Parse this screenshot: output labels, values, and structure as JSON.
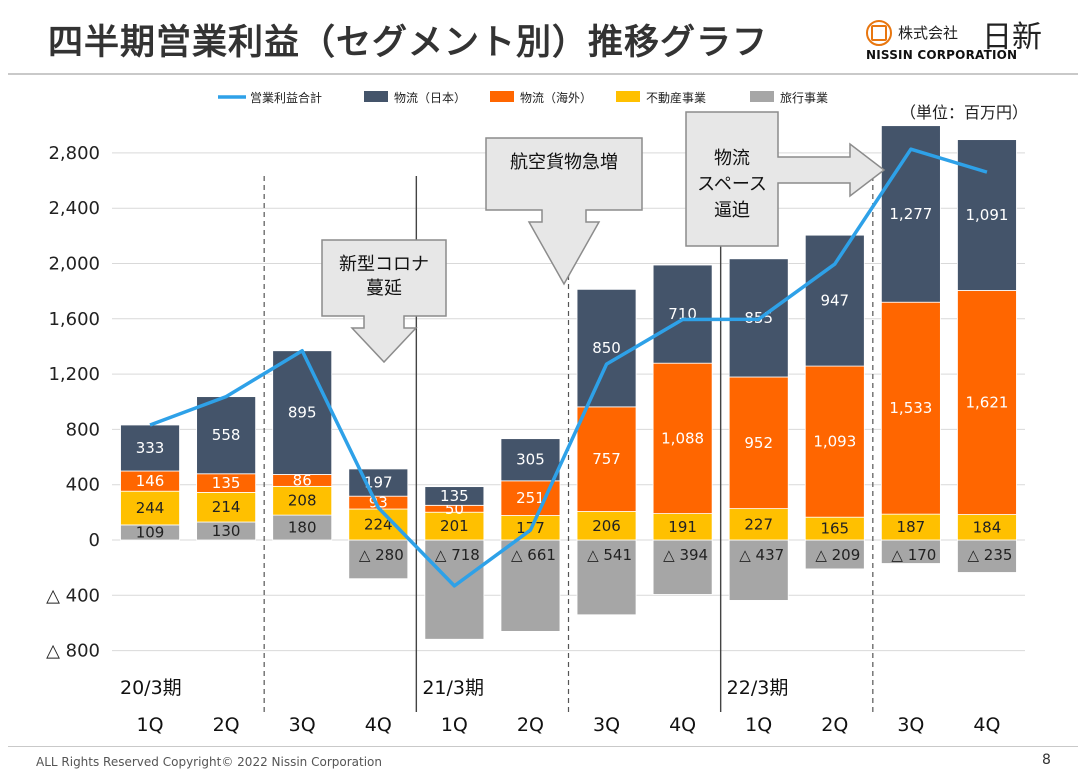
{
  "title": "四半期営業利益（セグメント別）推移グラフ",
  "logo": {
    "jp_small": "株式会社",
    "jp_large": "日新",
    "en": "NISSIN CORPORATION",
    "accent_color": "#e8760f"
  },
  "footer": "ALL Rights Reserved Copyright©  2022   Nissin Corporation",
  "page_number": "8",
  "chart_data": {
    "type": "bar",
    "stacked": true,
    "unit_label": "（単位：百万円）",
    "ylim": [
      -800,
      3000
    ],
    "yticks": [
      -800,
      -400,
      0,
      400,
      800,
      1200,
      1600,
      2000,
      2400,
      2800
    ],
    "ytick_labels": [
      "△ 800",
      "△ 400",
      "0",
      "400",
      "800",
      "1,200",
      "1,600",
      "2,000",
      "2,400",
      "2,800"
    ],
    "categories": [
      "1Q",
      "2Q",
      "3Q",
      "4Q",
      "1Q",
      "2Q",
      "3Q",
      "4Q",
      "1Q",
      "2Q",
      "3Q",
      "4Q"
    ],
    "periods": [
      {
        "label": "20/3期",
        "start_index": 0
      },
      {
        "label": "21/3期",
        "start_index": 4
      },
      {
        "label": "22/3期",
        "start_index": 8
      }
    ],
    "series": [
      {
        "name": "旅行事業",
        "color": "#a6a6a6",
        "values": [
          109,
          130,
          180,
          -280,
          -718,
          -661,
          -541,
          -394,
          -437,
          -209,
          -170,
          -235
        ],
        "labels": [
          "109",
          "130",
          "180",
          "△ 280",
          "△ 718",
          "△ 661",
          "△ 541",
          "△ 394",
          "△ 437",
          "△ 209",
          "△ 170",
          "△ 235"
        ]
      },
      {
        "name": "不動産事業",
        "color": "#ffc000",
        "values": [
          244,
          214,
          208,
          224,
          201,
          177,
          206,
          191,
          227,
          165,
          187,
          184
        ],
        "labels": [
          "244",
          "214",
          "208",
          "224",
          "201",
          "177",
          "206",
          "191",
          "227",
          "165",
          "187",
          "184"
        ]
      },
      {
        "name": "物流（海外）",
        "color": "#ff6600",
        "values": [
          146,
          135,
          86,
          93,
          50,
          251,
          757,
          1088,
          952,
          1093,
          1533,
          1621
        ],
        "labels": [
          "146",
          "135",
          "86",
          "93",
          "50",
          "251",
          "757",
          "1,088",
          "952",
          "1,093",
          "1,533",
          "1,621"
        ]
      },
      {
        "name": "物流（日本）",
        "color": "#44546a",
        "values": [
          333,
          558,
          895,
          197,
          135,
          305,
          850,
          710,
          855,
          947,
          1277,
          1091
        ],
        "labels": [
          "333",
          "558",
          "895",
          "197",
          "135",
          "305",
          "850",
          "710",
          "855",
          "947",
          "1,277",
          "1,091"
        ]
      }
    ],
    "line": {
      "name": "営業利益合計",
      "color": "#2ea1e8",
      "values": [
        832,
        1037,
        1369,
        234,
        -332,
        72,
        1272,
        1595,
        1597,
        1996,
        2827,
        2661
      ]
    },
    "legend_order": [
      "営業利益合計",
      "物流（日本）",
      "物流（海外）",
      "不動産事業",
      "旅行事業"
    ],
    "annotations": [
      {
        "text_lines": [
          "新型コロナ",
          "蔓延"
        ],
        "shape": "down-arrow"
      },
      {
        "text_lines": [
          "航空貨物急増"
        ],
        "shape": "down-arrow"
      },
      {
        "text_lines": [
          "物流",
          "スペース",
          "逼迫"
        ],
        "shape": "right-arrow"
      }
    ],
    "grid": true
  }
}
